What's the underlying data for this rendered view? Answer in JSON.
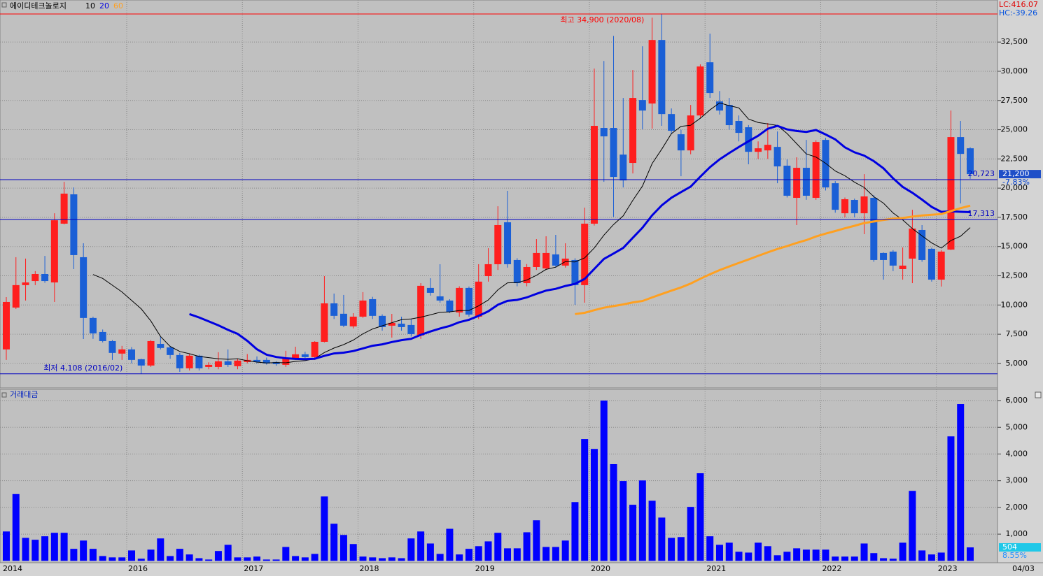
{
  "chart_data": [
    {
      "type": "candlestick",
      "title": "에이디테크놀로지",
      "ma": [
        {
          "period": 10,
          "color": "#000000",
          "width": 1
        },
        {
          "period": 20,
          "color": "#0000e0",
          "width": 3
        },
        {
          "period": 60,
          "color": "#ffa020",
          "width": 3
        }
      ],
      "categories": [
        "2014",
        null,
        null,
        null,
        null,
        null,
        null,
        null,
        null,
        null,
        null,
        null,
        null,
        "2016",
        null,
        null,
        null,
        null,
        null,
        null,
        null,
        null,
        null,
        null,
        null,
        "2017",
        null,
        null,
        null,
        null,
        null,
        null,
        null,
        null,
        null,
        null,
        null,
        "2018",
        null,
        null,
        null,
        null,
        null,
        null,
        null,
        null,
        null,
        null,
        null,
        "2019",
        null,
        null,
        null,
        null,
        null,
        null,
        null,
        null,
        null,
        null,
        null,
        "2020",
        null,
        null,
        null,
        null,
        null,
        null,
        null,
        null,
        null,
        null,
        null,
        "2021",
        null,
        null,
        null,
        null,
        null,
        null,
        null,
        null,
        null,
        null,
        null,
        "2022",
        null,
        null,
        null,
        null,
        null,
        null,
        null,
        null,
        null,
        null,
        null,
        "2023",
        null,
        null,
        null
      ],
      "open": [
        6200,
        9780,
        11700,
        12050,
        12650,
        11930,
        16960,
        19470,
        14090,
        8890,
        7690,
        6910,
        5840,
        6200,
        5360,
        4820,
        6670,
        6370,
        5720,
        4580,
        5660,
        4700,
        4700,
        5180,
        4760,
        5120,
        5300,
        5300,
        5120,
        4880,
        5420,
        5780,
        5540,
        6850,
        10140,
        9250,
        8170,
        9000,
        10500,
        9070,
        8230,
        8400,
        8290,
        7390,
        11460,
        10740,
        10380,
        9360,
        11460,
        9000,
        12470,
        13490,
        17080,
        13850,
        11870,
        13250,
        13130,
        14330,
        13370,
        13850,
        11700,
        16960,
        25150,
        25150,
        22870,
        22160,
        27540,
        27240,
        32680,
        26340,
        24610,
        23230,
        26220,
        30770,
        27420,
        27120,
        25750,
        25210,
        23110,
        23230,
        23530,
        21920,
        19170,
        21740,
        19170,
        24130,
        20420,
        17850,
        18990,
        17850,
        19170,
        14450,
        14570,
        13070,
        13970,
        16420,
        14810,
        12170,
        14740,
        24370,
        23410
      ],
      "high": [
        10680,
        14090,
        13970,
        12900,
        14200,
        17850,
        20540,
        20060,
        15280,
        9000,
        7900,
        7000,
        6500,
        6400,
        5400,
        7000,
        7270,
        6500,
        5900,
        5800,
        5750,
        5100,
        5960,
        6200,
        5400,
        5800,
        5600,
        5500,
        5200,
        6080,
        6430,
        6000,
        6900,
        12470,
        10980,
        10860,
        9300,
        11100,
        10700,
        9200,
        9240,
        9000,
        8770,
        11870,
        12290,
        13490,
        10500,
        11600,
        11580,
        13490,
        14860,
        18450,
        19770,
        14000,
        13500,
        15640,
        15880,
        16000,
        15280,
        14000,
        18330,
        30230,
        30880,
        33030,
        27720,
        30110,
        32140,
        34590,
        34900,
        26820,
        25000,
        27120,
        30590,
        33220,
        28310,
        27720,
        26220,
        25400,
        24000,
        25570,
        24850,
        22460,
        22640,
        24130,
        24100,
        24300,
        20600,
        19200,
        19100,
        21200,
        19400,
        14500,
        14700,
        14920,
        18150,
        16840,
        14900,
        14700,
        26640,
        25750,
        23500
      ],
      "low": [
        5300,
        9660,
        10380,
        11700,
        11900,
        10260,
        16900,
        13070,
        7090,
        7100,
        6800,
        5300,
        5300,
        5000,
        4108,
        4700,
        6200,
        5400,
        4280,
        4400,
        4400,
        4500,
        4500,
        4700,
        4500,
        5000,
        5000,
        4900,
        4800,
        4700,
        5300,
        5300,
        5300,
        6800,
        8800,
        8100,
        8000,
        8900,
        8800,
        7800,
        7210,
        7800,
        7300,
        7100,
        10800,
        10200,
        9300,
        9000,
        9000,
        8800,
        12000,
        13000,
        13200,
        11600,
        11600,
        13000,
        13000,
        13200,
        13200,
        10020,
        10200,
        16800,
        20540,
        17550,
        20060,
        21260,
        25030,
        25090,
        25330,
        24610,
        21020,
        22900,
        26000,
        27720,
        26300,
        25000,
        24000,
        22040,
        22500,
        22500,
        20420,
        19200,
        16840,
        19000,
        19000,
        19800,
        17900,
        17500,
        17500,
        16060,
        13700,
        12170,
        12900,
        12170,
        11870,
        13700,
        12000,
        11580,
        14700,
        18690,
        20800
      ],
      "close": [
        10260,
        11700,
        11930,
        12650,
        12050,
        17250,
        19530,
        14270,
        8890,
        7570,
        6910,
        5900,
        6200,
        5300,
        4820,
        6910,
        6320,
        5720,
        4580,
        5660,
        4580,
        4880,
        5180,
        4880,
        5240,
        5300,
        5120,
        5000,
        4940,
        5420,
        5780,
        5540,
        6850,
        10140,
        9070,
        8230,
        9000,
        10380,
        9070,
        8110,
        8470,
        8110,
        7510,
        11640,
        11040,
        10380,
        9420,
        11460,
        9180,
        12000,
        13490,
        16840,
        13490,
        11870,
        13250,
        14450,
        14450,
        13370,
        13970,
        11700,
        16960,
        25330,
        24430,
        20960,
        20660,
        27720,
        26640,
        32680,
        26340,
        24910,
        23230,
        26220,
        30410,
        28140,
        26640,
        25390,
        24730,
        23110,
        23410,
        23710,
        21860,
        19350,
        21740,
        19350,
        23950,
        20060,
        18150,
        19050,
        17850,
        19290,
        13850,
        13850,
        13370,
        13370,
        16540,
        13850,
        12170,
        14570,
        24370,
        22930,
        21200
      ],
      "up_color": "#ff1e1e",
      "down_color": "#1a5fd6",
      "ylim": [
        2900,
        36100
      ],
      "yticks": [
        {
          "value": 5000,
          "label": "5,000"
        },
        {
          "value": 7500,
          "label": "7,500"
        },
        {
          "value": 10000,
          "label": "10,000"
        },
        {
          "value": 12500,
          "label": "12,500"
        },
        {
          "value": 15000,
          "label": "15,000"
        },
        {
          "value": 17500,
          "label": "17,500"
        },
        {
          "value": 20000,
          "label": "20,000"
        },
        {
          "value": 22500,
          "label": "22,500"
        },
        {
          "value": 25000,
          "label": "25,000"
        },
        {
          "value": 27500,
          "label": "27,500"
        },
        {
          "value": 30000,
          "label": "30,000"
        },
        {
          "value": 32500,
          "label": "32,500"
        }
      ],
      "high_marker": {
        "value": 34900,
        "label": "최고 34,900 (2020/08)",
        "color": "#ff0000"
      },
      "low_marker": {
        "value": 4108,
        "label": "최저 4,108 (2016/02)",
        "color": "#0000c0"
      },
      "lines": [
        {
          "value": 20723,
          "label": "20,723",
          "color": "#0000c0"
        },
        {
          "value": 17313,
          "label": "17,313",
          "color": "#0000c0"
        }
      ],
      "last_label": {
        "value": 21200,
        "label": "21,200",
        "color": "#1f4fc8"
      },
      "change": "-7.83%",
      "lc": "LC:416.07",
      "hc": "HC:-39.26",
      "date_label": "04/03"
    },
    {
      "type": "bar",
      "title": "거래대금",
      "color": "#0000ff",
      "values": [
        1100,
        2500,
        860,
        790,
        920,
        1050,
        1050,
        450,
        760,
        450,
        180,
        130,
        130,
        390,
        80,
        420,
        840,
        180,
        450,
        240,
        100,
        50,
        370,
        600,
        130,
        130,
        160,
        50,
        50,
        520,
        180,
        130,
        260,
        2410,
        1390,
        970,
        630,
        160,
        130,
        100,
        130,
        100,
        840,
        1100,
        650,
        260,
        1200,
        240,
        450,
        550,
        730,
        1050,
        470,
        470,
        1070,
        1520,
        520,
        520,
        760,
        2200,
        4560,
        4190,
        6000,
        3620,
        2990,
        2100,
        3010,
        2250,
        1620,
        860,
        890,
        2020,
        3280,
        920,
        600,
        680,
        340,
        310,
        680,
        550,
        210,
        340,
        470,
        420,
        420,
        420,
        160,
        160,
        160,
        650,
        290,
        100,
        80,
        680,
        2620,
        390,
        240,
        310,
        4660,
        5870,
        504
      ],
      "ylim": [
        -70,
        6420
      ],
      "yticks": [
        {
          "value": 1000,
          "label": "1,000"
        },
        {
          "value": 2000,
          "label": "2,000"
        },
        {
          "value": 3000,
          "label": "3,000"
        },
        {
          "value": 4000,
          "label": "4,000"
        },
        {
          "value": 5000,
          "label": "5,000"
        },
        {
          "value": 6000,
          "label": "6,000"
        }
      ],
      "last_label": {
        "value": 504,
        "label": "504",
        "color": "#20c8e8"
      },
      "change": "8.55%"
    }
  ]
}
